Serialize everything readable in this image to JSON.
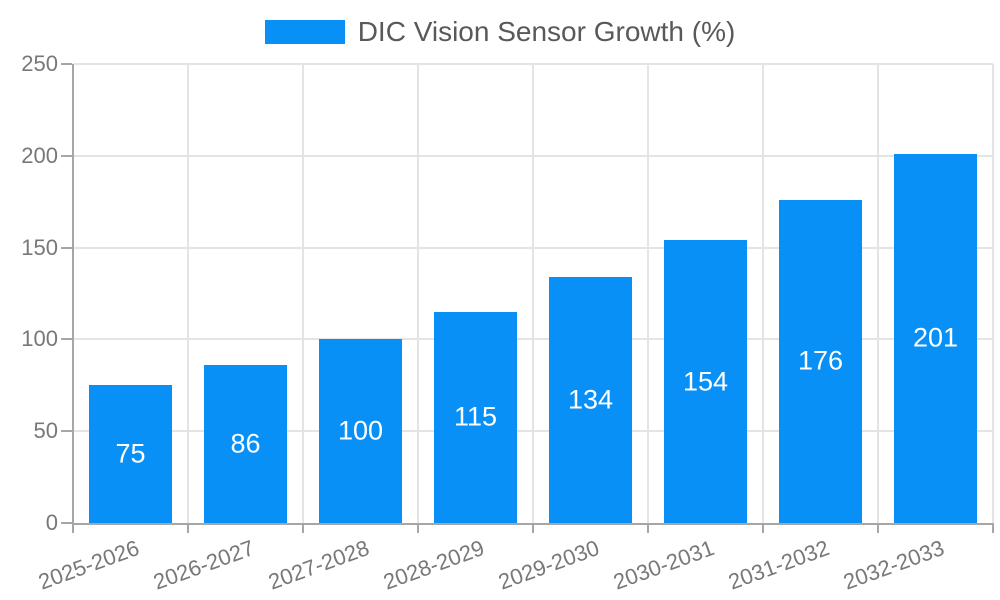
{
  "chart_data": {
    "type": "bar",
    "title": "DIC Vision Sensor Growth (%)",
    "categories": [
      "2025-2026",
      "2026-2027",
      "2027-2028",
      "2028-2029",
      "2029-2030",
      "2030-2031",
      "2031-2032",
      "2032-2033"
    ],
    "values": [
      75,
      86,
      100,
      115,
      134,
      154,
      176,
      201
    ],
    "y_ticks": [
      0,
      50,
      100,
      150,
      200,
      250
    ],
    "ylim": [
      0,
      250
    ],
    "xlabel": "",
    "ylabel": "",
    "grid": true,
    "legend_position": "top-center",
    "x_label_rotation_deg": -20,
    "colors": {
      "bar": "#0890f6",
      "bar_label": "#ffffff",
      "axis": "#a6a6a6",
      "grid": "#e4e4e4",
      "tick_label": "#787878",
      "legend_text": "#595959"
    }
  }
}
